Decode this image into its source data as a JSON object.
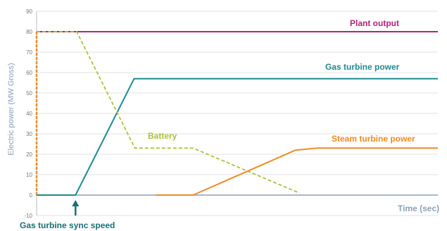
{
  "chart_data": {
    "type": "line",
    "ylabel": "Electric power (MW Gross)",
    "xlabel": "Time (sec)",
    "ylim": [
      -10,
      90
    ],
    "yticks": [
      "-10",
      "0",
      "10",
      "20",
      "30",
      "40",
      "50",
      "60",
      "70",
      "80",
      "90"
    ],
    "grid": true,
    "series": [
      {
        "name": "Plant output",
        "color": "#b5237a",
        "style": "solid",
        "points": [
          [
            0,
            80
          ],
          [
            100,
            80
          ]
        ]
      },
      {
        "name": "Gas turbine power",
        "color": "#1f8a8e",
        "style": "solid",
        "points": [
          [
            0,
            0
          ],
          [
            9.7,
            0
          ],
          [
            24.3,
            57
          ],
          [
            100,
            57
          ]
        ]
      },
      {
        "name": "Battery",
        "color": "#a8c43a",
        "style": "dashed",
        "points": [
          [
            0,
            80
          ],
          [
            10,
            80
          ],
          [
            24.5,
            23
          ],
          [
            39,
            23
          ],
          [
            65.5,
            1
          ]
        ]
      },
      {
        "name": "Steam turbine power",
        "color": "#f08a24",
        "style": "solid",
        "points": [
          [
            29.7,
            0
          ],
          [
            39,
            0
          ],
          [
            64.5,
            22
          ],
          [
            70,
            23
          ],
          [
            100,
            23
          ]
        ]
      }
    ],
    "startup_line": {
      "color": "#f08a24",
      "points": [
        [
          0,
          0
        ],
        [
          0,
          80
        ]
      ]
    },
    "annotations": [
      {
        "text": "Plant output",
        "color": "#b5237a"
      },
      {
        "text": "Gas turbine power",
        "color": "#1f8a8e"
      },
      {
        "text": "Battery",
        "color": "#a8c43a"
      },
      {
        "text": "Steam turbine power",
        "color": "#f08a24"
      }
    ],
    "marker": {
      "text": "Gas turbine sync speed",
      "x": 9.7,
      "color": "#1a6f74"
    }
  }
}
